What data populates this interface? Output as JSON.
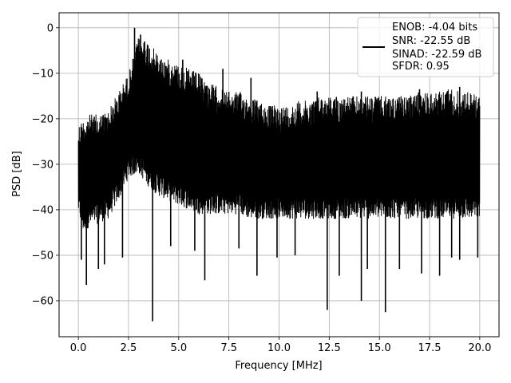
{
  "chart_data": {
    "type": "line",
    "title": "",
    "xlabel": "Frequency [MHz]",
    "ylabel": "PSD [dB]",
    "xlim": [
      -0.96,
      20.96
    ],
    "ylim": [
      -67.9,
      3.3
    ],
    "grid": true,
    "legend_placement": "top-right",
    "x_ticks": [
      0,
      2.5,
      5,
      7.5,
      10,
      12.5,
      15,
      17.5,
      20
    ],
    "x_tick_labels": [
      "0.0",
      "2.5",
      "5.0",
      "7.5",
      "10.0",
      "12.5",
      "15.0",
      "17.5",
      "20.0"
    ],
    "y_ticks": [
      0,
      -10,
      -20,
      -30,
      -40,
      -50,
      -60
    ],
    "y_tick_labels": [
      "0",
      "−10",
      "−20",
      "−30",
      "−40",
      "−50",
      "−60"
    ],
    "legend_entries": [
      "ENOB: -4.04 bits",
      "SNR: -22.55 dB",
      "SINAD: -22.59 dB",
      "SFDR: 0.95"
    ],
    "series": [
      {
        "color": "#000000",
        "envelope": {
          "x": [
            0.0,
            0.25,
            0.5,
            1.0,
            1.5,
            2.0,
            2.5,
            3.0,
            3.5,
            4.0,
            4.5,
            5.0,
            5.5,
            6.0,
            6.5,
            7.0,
            7.5,
            8.0,
            8.5,
            9.0,
            9.5,
            10.0,
            10.5,
            11.0,
            11.5,
            12.0,
            12.5,
            13.0,
            13.5,
            14.0,
            14.5,
            15.0,
            15.5,
            16.0,
            16.5,
            17.0,
            17.5,
            18.0,
            18.5,
            19.0,
            19.5,
            20.0
          ],
          "high": [
            -21,
            -20,
            -19,
            -19,
            -18,
            -14,
            -10,
            -2,
            -3,
            -6,
            -7,
            -8,
            -9,
            -10,
            -12,
            -13,
            -14,
            -14,
            -15,
            -16,
            -17,
            -17,
            -17,
            -16,
            -16,
            -15,
            -15,
            -15,
            -15,
            -15,
            -15,
            -15,
            -15,
            -15,
            -15,
            -14,
            -14,
            -14,
            -13,
            -14,
            -14,
            -15
          ],
          "low": [
            -41,
            -45,
            -44,
            -43,
            -42,
            -38,
            -33,
            -32,
            -35,
            -37,
            -38,
            -39,
            -40,
            -41,
            -41,
            -41,
            -41,
            -41,
            -42,
            -42,
            -42,
            -42,
            -42,
            -42,
            -42,
            -42,
            -42,
            -42,
            -42,
            -42,
            -42,
            -42,
            -42,
            -42,
            -42,
            -42,
            -42,
            -42,
            -42,
            -42,
            -42,
            -42
          ]
        },
        "dips": [
          {
            "x": 0.15,
            "y": -51
          },
          {
            "x": 0.4,
            "y": -56.5
          },
          {
            "x": 1.0,
            "y": -53
          },
          {
            "x": 1.3,
            "y": -52
          },
          {
            "x": 2.2,
            "y": -50.5
          },
          {
            "x": 3.7,
            "y": -64.5
          },
          {
            "x": 4.6,
            "y": -48
          },
          {
            "x": 5.8,
            "y": -49
          },
          {
            "x": 6.3,
            "y": -55.5
          },
          {
            "x": 8.0,
            "y": -48.5
          },
          {
            "x": 8.9,
            "y": -54.5
          },
          {
            "x": 9.9,
            "y": -50.5
          },
          {
            "x": 10.8,
            "y": -50
          },
          {
            "x": 12.4,
            "y": -62
          },
          {
            "x": 13.0,
            "y": -54.5
          },
          {
            "x": 14.1,
            "y": -60
          },
          {
            "x": 14.4,
            "y": -53
          },
          {
            "x": 15.3,
            "y": -62.5
          },
          {
            "x": 16.0,
            "y": -53
          },
          {
            "x": 17.1,
            "y": -54
          },
          {
            "x": 18.0,
            "y": -54.5
          },
          {
            "x": 18.6,
            "y": -50.5
          },
          {
            "x": 19.0,
            "y": -51
          },
          {
            "x": 19.9,
            "y": -50.5
          }
        ],
        "peaks": [
          {
            "x": 2.8,
            "y": 0.0
          },
          {
            "x": 3.1,
            "y": -1.5
          },
          {
            "x": 3.3,
            "y": -3.0
          },
          {
            "x": 5.2,
            "y": -7.0
          },
          {
            "x": 7.2,
            "y": -9.0
          },
          {
            "x": 8.6,
            "y": -11.0
          },
          {
            "x": 11.9,
            "y": -14.0
          },
          {
            "x": 14.1,
            "y": -14.0
          },
          {
            "x": 17.0,
            "y": -13.5
          },
          {
            "x": 19.0,
            "y": -13.0
          }
        ]
      }
    ]
  }
}
